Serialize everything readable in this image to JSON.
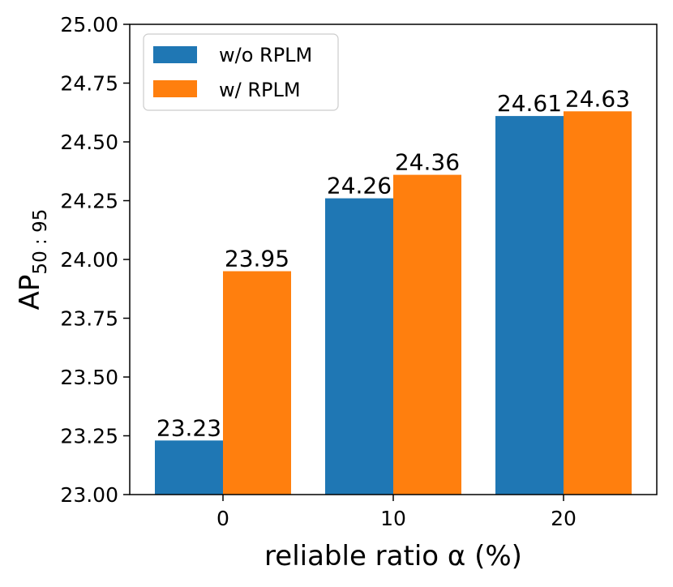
{
  "chart_data": {
    "type": "bar",
    "categories": [
      "0",
      "10",
      "20"
    ],
    "series": [
      {
        "name": "w/o RPLM",
        "values": [
          23.23,
          24.26,
          24.61
        ],
        "color": "#1f77b4"
      },
      {
        "name": "w/ RPLM",
        "values": [
          23.95,
          24.36,
          24.63
        ],
        "color": "#ff7f0e"
      }
    ],
    "xlabel": "reliable ratio α (%)",
    "ylabel": {
      "main": "AP",
      "subscript": "50 : 95"
    },
    "ylim": [
      23.0,
      25.0
    ],
    "yticks": [
      "23.00",
      "23.25",
      "23.50",
      "23.75",
      "24.00",
      "24.25",
      "24.50",
      "24.75",
      "25.00"
    ],
    "data_labels": [
      [
        "23.23",
        "24.26",
        "24.61"
      ],
      [
        "23.95",
        "24.36",
        "24.63"
      ]
    ],
    "legend": "top-left",
    "grid": false
  }
}
